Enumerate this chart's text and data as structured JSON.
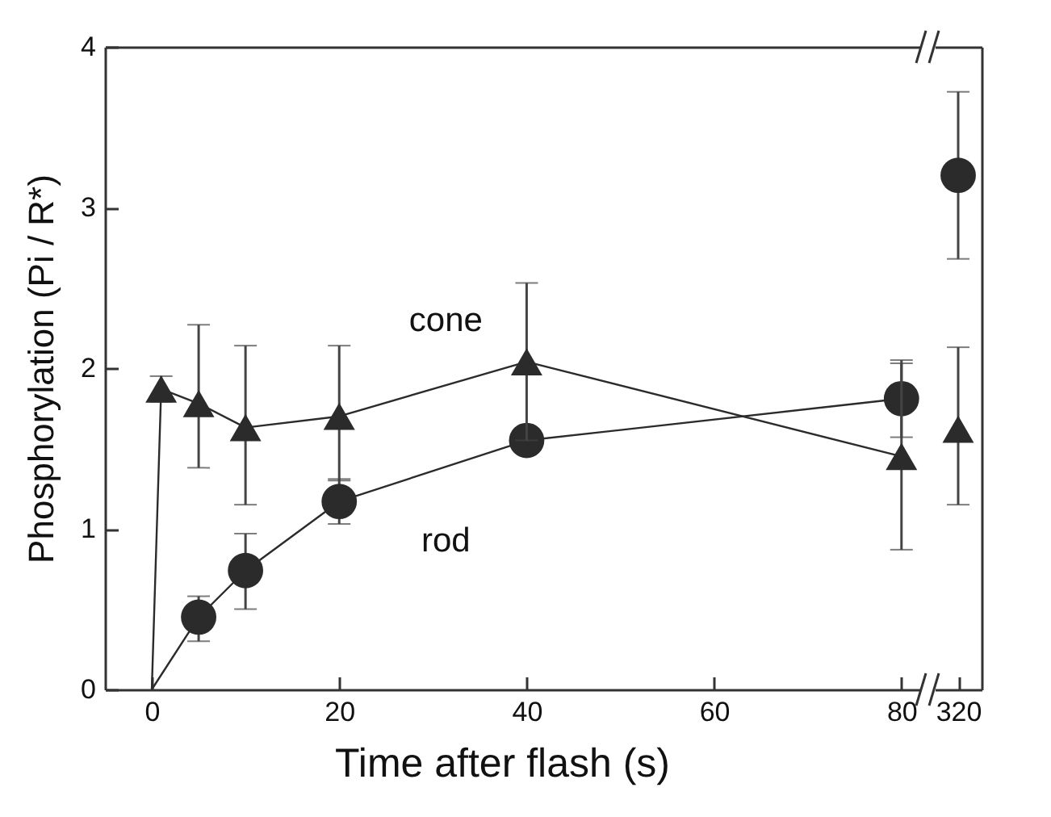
{
  "chart_data": [
    {
      "type": "line",
      "ylabel": "Phosphorylation (Pi / R*)",
      "xlabel": "Time after flash (s)",
      "xlim": [
        -5,
        82
      ],
      "xticks": [
        0,
        20,
        40,
        60,
        80
      ],
      "ylim": [
        0,
        4
      ],
      "yticks": [
        0,
        1,
        2,
        3,
        4
      ],
      "series": [
        {
          "name": "rod",
          "color": "#2b2b2b",
          "marker": "circle",
          "x": [
            0,
            5,
            10,
            20,
            40,
            80
          ],
          "values": [
            0,
            0.45,
            0.74,
            1.17,
            1.55,
            1.81
          ],
          "errors": [
            null,
            [
              0.3,
              0.58
            ],
            [
              0.5,
              0.97
            ],
            [
              1.03,
              1.31
            ],
            null,
            [
              1.57,
              2.05
            ]
          ]
        },
        {
          "name": "cone",
          "color": "#2b2b2b",
          "marker": "triangle",
          "x": [
            0,
            1,
            5,
            10,
            20,
            40,
            80
          ],
          "values": [
            0,
            1.87,
            1.78,
            1.63,
            1.7,
            2.04,
            1.45
          ],
          "errors": [
            null,
            [
              1.79,
              1.95
            ],
            [
              1.38,
              2.27
            ],
            [
              1.15,
              2.14
            ],
            [
              1.3,
              2.14
            ],
            [
              1.55,
              2.53
            ],
            [
              0.87,
              2.03
            ]
          ]
        }
      ]
    },
    {
      "type": "scatter",
      "categories": [
        "320"
      ],
      "ylim": [
        0,
        4
      ],
      "yticks": [
        0,
        1,
        2,
        3,
        4
      ],
      "tick_labels": "x",
      "series": [
        {
          "color": "#2b2b2b",
          "marker": "circle",
          "values": [
            3.2
          ],
          "errors": [
            [
              2.68,
              3.72
            ]
          ]
        },
        {
          "color": "#2b2b2b",
          "marker": "triangle",
          "values": [
            1.62
          ],
          "errors": [
            [
              1.15,
              2.13
            ]
          ]
        }
      ]
    }
  ]
}
